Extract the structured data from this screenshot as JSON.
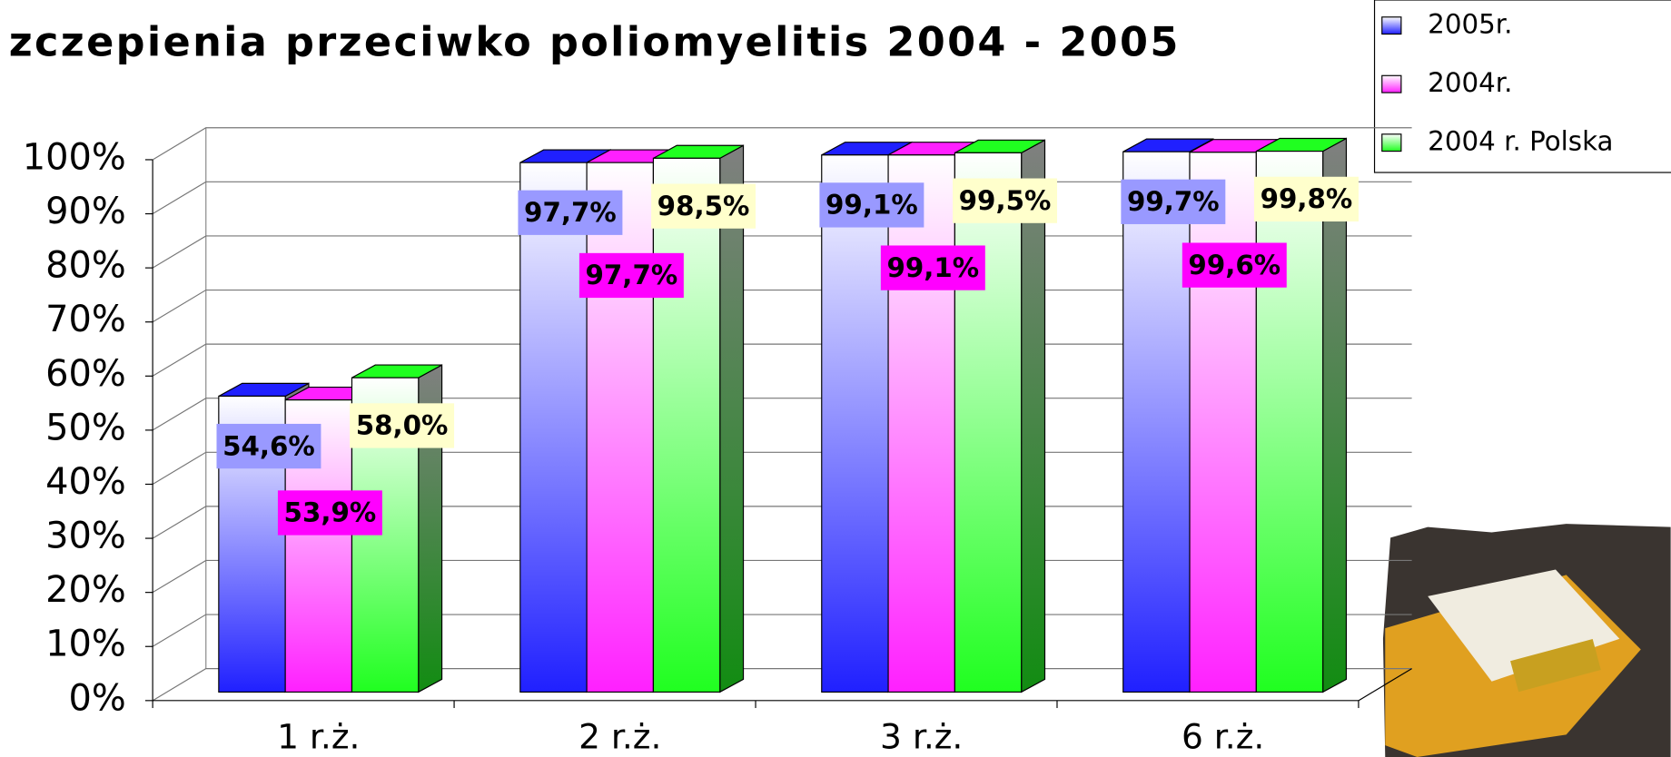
{
  "chart_data": {
    "type": "bar3d",
    "title": "zczepienia przeciwko poliomyelitis 2004 - 2005",
    "categories": [
      "1 r.ż.",
      "2 r.ż.",
      "3 r.ż.",
      "6 r.ż."
    ],
    "series": [
      {
        "name": "2005r.",
        "color": "#2020ff",
        "label_color": "#9999ff",
        "values": [
          54.6,
          97.7,
          99.1,
          99.7
        ],
        "value_labels": [
          "54,6%",
          "97,7%",
          "99,1%",
          "99,7%"
        ]
      },
      {
        "name": "2004r.",
        "color": "#ff20ff",
        "label_color": "#ff00ff",
        "values": [
          53.9,
          97.7,
          99.1,
          99.6
        ],
        "value_labels": [
          "53,9%",
          "97,7%",
          "99,1%",
          "99,6%"
        ]
      },
      {
        "name": "2004 r. Polska",
        "color": "#20ff20",
        "label_color": "#ffffcc",
        "values": [
          58.0,
          98.5,
          99.5,
          99.8
        ],
        "value_labels": [
          "58,0%",
          "98,5%",
          "99,5%",
          "99,8%"
        ]
      }
    ],
    "ylim": [
      0,
      100
    ],
    "yticks": [
      {
        "value": 0,
        "label": "0%"
      },
      {
        "value": 10,
        "label": "10%"
      },
      {
        "value": 20,
        "label": "20%"
      },
      {
        "value": 30,
        "label": "30%"
      },
      {
        "value": 40,
        "label": "40%"
      },
      {
        "value": 50,
        "label": "50%"
      },
      {
        "value": 60,
        "label": "60%"
      },
      {
        "value": 70,
        "label": "70%"
      },
      {
        "value": 80,
        "label": "80%"
      },
      {
        "value": 90,
        "label": "90%"
      },
      {
        "value": 100,
        "label": "100%"
      }
    ],
    "grid": true,
    "legend": "top-right"
  }
}
